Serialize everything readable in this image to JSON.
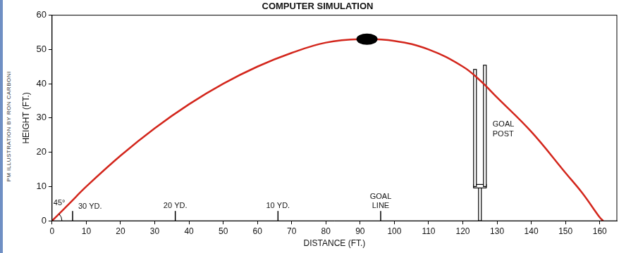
{
  "chart_data": {
    "type": "line",
    "title": "COMPUTER SIMULATION",
    "credit": "PM ILLUSTRATION BY RON CARBONI",
    "x_label": "DISTANCE (FT.)",
    "y_label": "HEIGHT (FT.)",
    "x": [
      0,
      5,
      10,
      20,
      30,
      40,
      50,
      60,
      70,
      80,
      90,
      100,
      110,
      120,
      125,
      130,
      140,
      150,
      155,
      160,
      161
    ],
    "values": [
      0,
      5,
      10,
      19,
      27,
      34,
      40,
      45,
      49,
      52,
      53,
      52.5,
      50,
      45,
      41,
      36,
      26,
      14,
      8,
      1,
      0
    ],
    "color": "#d3261c",
    "xlim": [
      0,
      165
    ],
    "xticks": [
      0,
      10,
      20,
      30,
      40,
      50,
      60,
      70,
      80,
      90,
      100,
      110,
      120,
      130,
      140,
      150,
      160
    ],
    "ylim": [
      0,
      60
    ],
    "yticks": [
      0,
      10,
      20,
      30,
      40,
      50,
      60
    ],
    "grid": false,
    "ball": {
      "x": 92,
      "y": 53
    },
    "launch_angle": {
      "value": 45,
      "label": "45°"
    },
    "yard_lines": [
      {
        "x": 6,
        "label": "30 YD."
      },
      {
        "x": 36,
        "label": "20 YD."
      },
      {
        "x": 66,
        "label": "10 YD."
      },
      {
        "x": 96,
        "label": "GOAL LINE"
      }
    ],
    "goal_post": {
      "x": 125,
      "crossbar": 10,
      "top": 45,
      "label": "GOAL POST"
    }
  }
}
